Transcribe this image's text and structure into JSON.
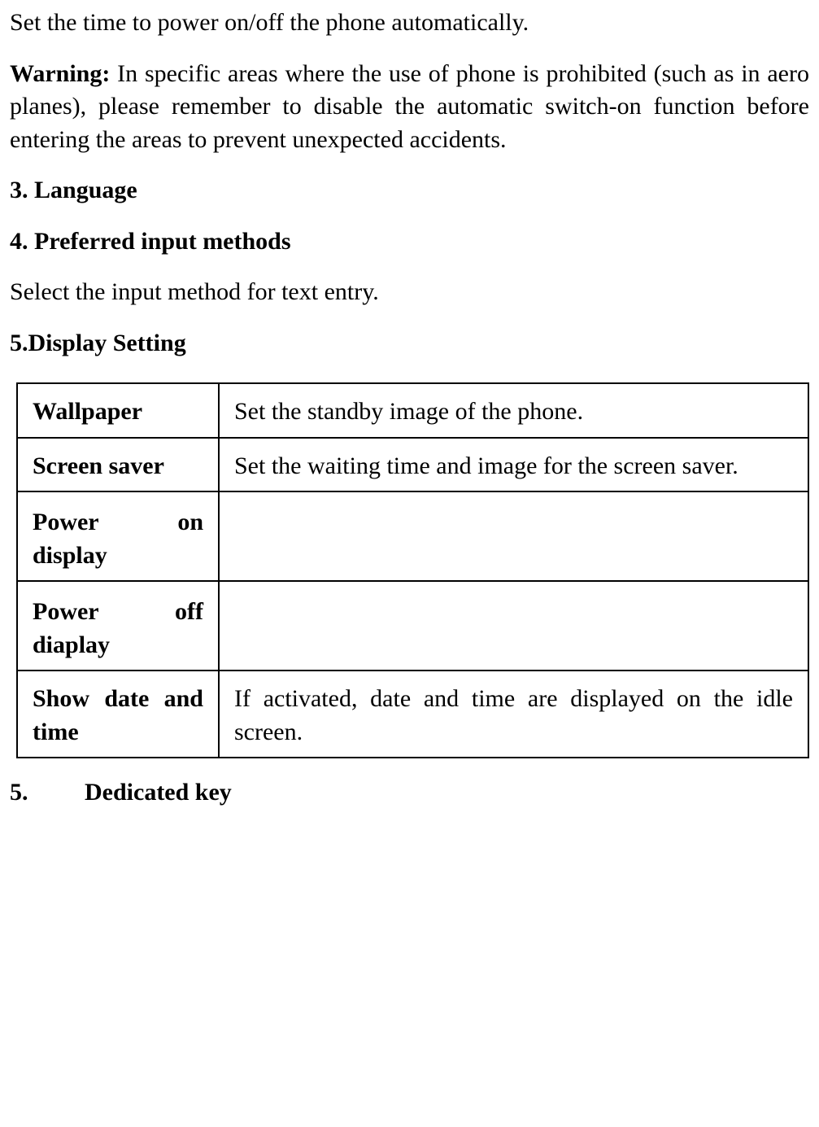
{
  "intro_text": "Set the time to power on/off the phone automatically.",
  "warning": {
    "label": "Warning:",
    "text": " In specific areas where the use of phone is prohibited (such as in aero planes), please remember to disable the automatic switch-on function before entering the areas to prevent unexpected accidents."
  },
  "heading_language": "3. Language",
  "heading_input": "4. Preferred input methods",
  "input_text": "Select the input method for text entry.",
  "heading_display": "5.Display Setting",
  "table": {
    "rows": [
      {
        "left": "Wallpaper",
        "right": "Set the standby image of the phone."
      },
      {
        "left": "Screen saver",
        "right": "Set the waiting time and image for the screen saver."
      },
      {
        "left": "Power on display",
        "right": ""
      },
      {
        "left": "Power off diaplay",
        "right": ""
      },
      {
        "left": "Show date and time",
        "right": "If activated, date and time are displayed on the idle screen."
      }
    ]
  },
  "heading_dedicated": {
    "num": "5.",
    "title": "Dedicated key"
  }
}
